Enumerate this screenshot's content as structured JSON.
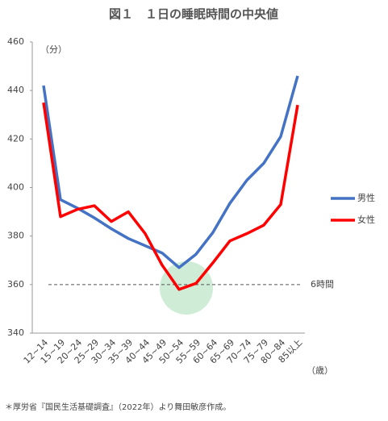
{
  "chart_data": {
    "type": "line",
    "title": "図１　１日の睡眠時間の中央値",
    "y_unit": "（分）",
    "x_unit": "（歳）",
    "categories": [
      "12~14",
      "15~19",
      "20~24",
      "25~29",
      "30~34",
      "35~39",
      "40~44",
      "45~49",
      "50~54",
      "55~59",
      "60~64",
      "65~69",
      "70~74",
      "75~79",
      "80~84",
      "85以上"
    ],
    "series": [
      {
        "name": "男性",
        "color": "#4472c4",
        "values": [
          442,
          395,
          391.5,
          387.5,
          383,
          379,
          376,
          373,
          367,
          372.5,
          381.5,
          393.5,
          403,
          410,
          421,
          446
        ]
      },
      {
        "name": "女性",
        "color": "#ff0000",
        "values": [
          435,
          388,
          391,
          392.5,
          386,
          390,
          381,
          368,
          358,
          360.5,
          369,
          378,
          381,
          384.5,
          393,
          434
        ]
      }
    ],
    "ylim": [
      340,
      460
    ],
    "yticks": [
      340,
      360,
      380,
      400,
      420,
      440,
      460
    ],
    "reference_line": {
      "value": 360,
      "label": "6時間"
    },
    "legend": "right",
    "footnote": "＊厚労省『国民生活基礎調査』（2022年）より舞田敏彦作成。"
  }
}
